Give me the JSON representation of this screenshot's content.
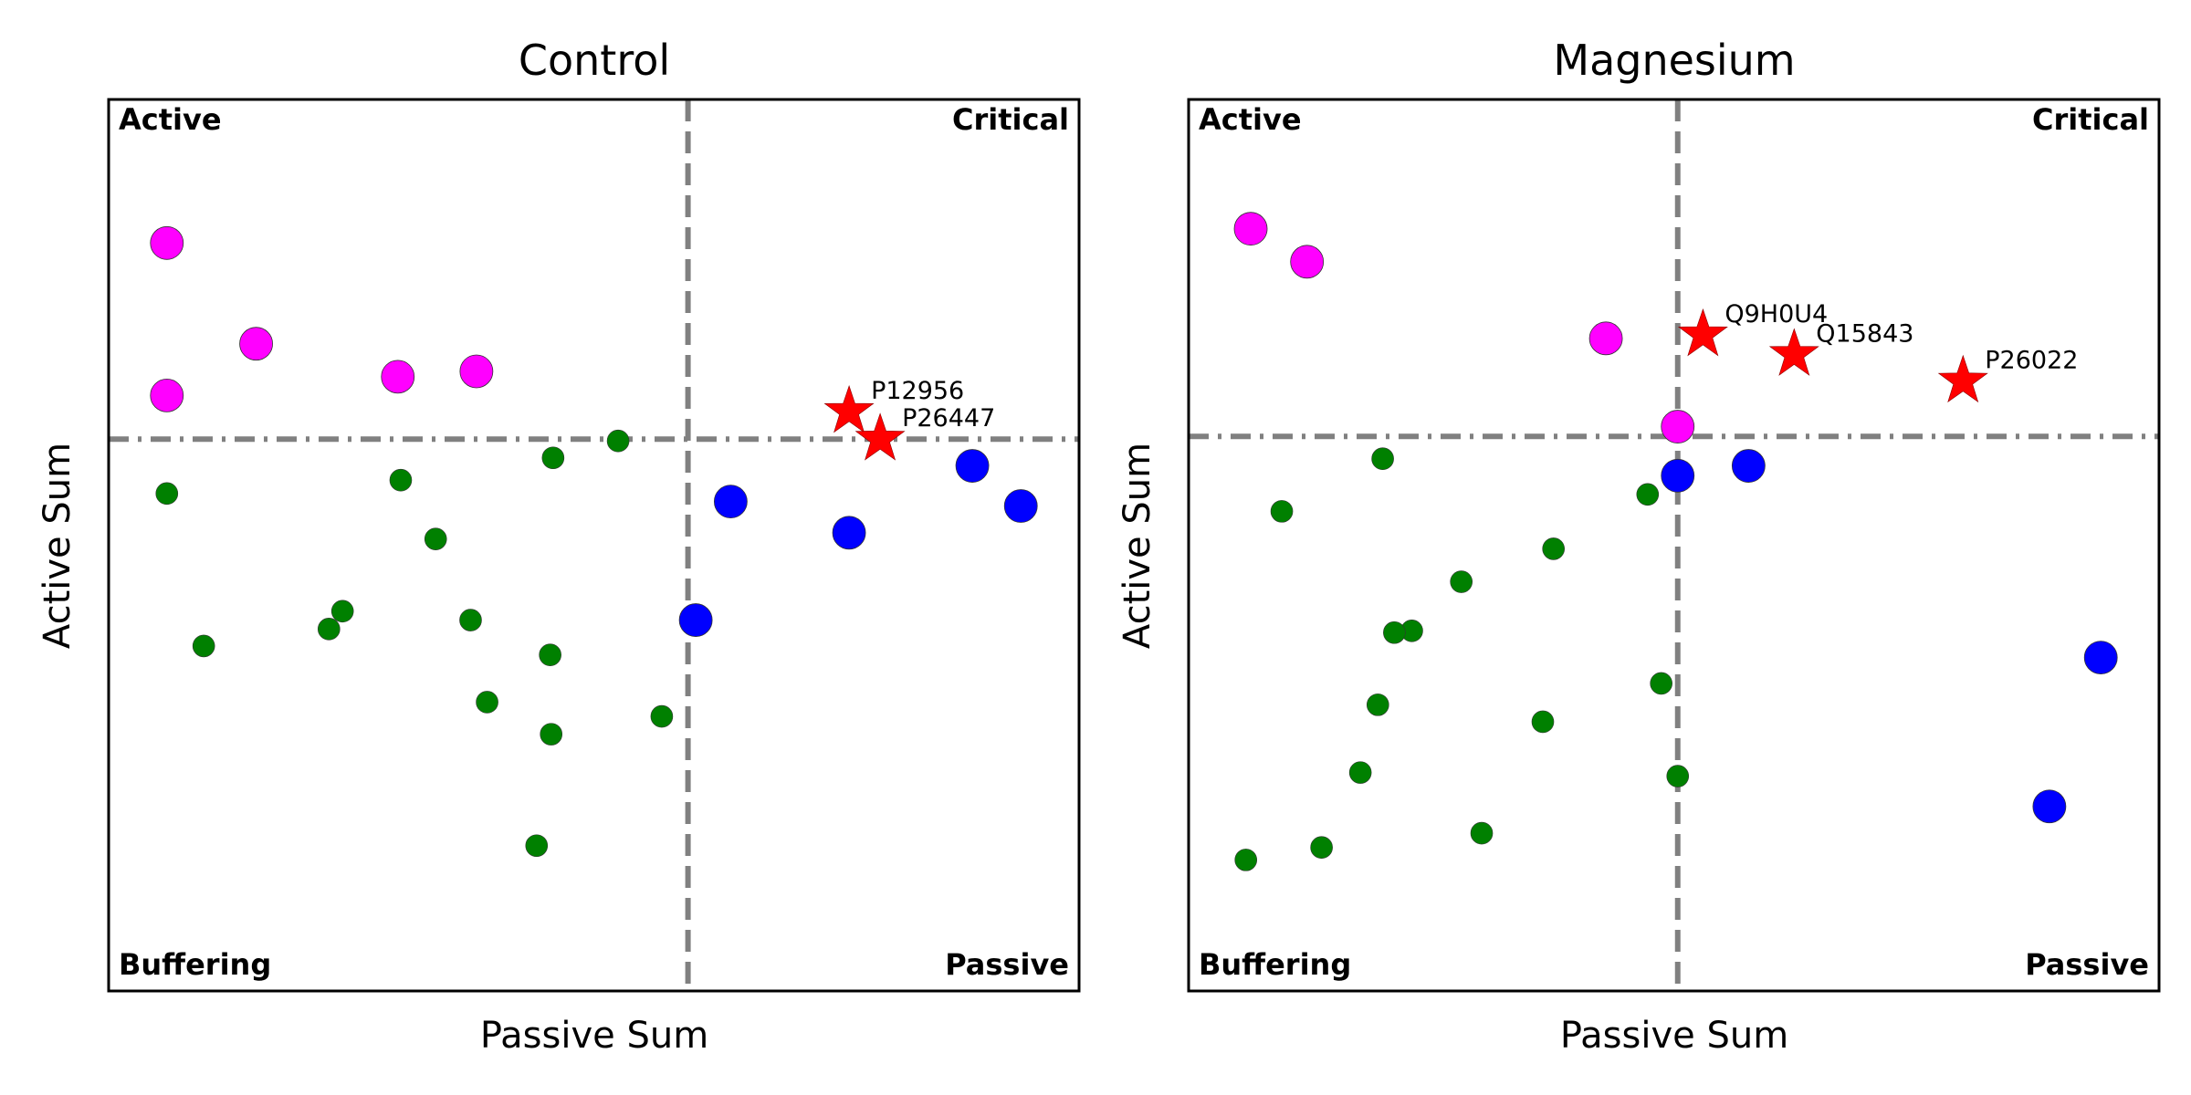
{
  "chart_data": [
    {
      "type": "scatter",
      "title": "Control",
      "xlabel": "Passive Sum",
      "ylabel": "Active Sum",
      "xlim": [
        0,
        100
      ],
      "ylim": [
        0,
        100
      ],
      "grid": false,
      "axis_ticks": false,
      "divider_x": 59.7,
      "divider_y": 61.9,
      "quadrant_labels": {
        "top_left": "Active",
        "top_right": "Critical",
        "bottom_left": "Buffering",
        "bottom_right": "Passive"
      },
      "colors": {
        "active": "#ff00ff",
        "buffering": "#008000",
        "passive": "#0000ff",
        "critical": "#ff0000",
        "divider": "#808080"
      },
      "series": [
        {
          "category": "active",
          "marker": "large-circle",
          "points": [
            {
              "x": 6.0,
              "y": 83.9
            },
            {
              "x": 6.0,
              "y": 66.8
            },
            {
              "x": 15.2,
              "y": 72.6
            },
            {
              "x": 29.8,
              "y": 68.9
            },
            {
              "x": 37.9,
              "y": 69.5
            }
          ]
        },
        {
          "category": "buffering",
          "marker": "small-circle",
          "points": [
            {
              "x": 6.0,
              "y": 55.8
            },
            {
              "x": 30.1,
              "y": 57.3
            },
            {
              "x": 45.8,
              "y": 59.8
            },
            {
              "x": 52.5,
              "y": 61.7
            },
            {
              "x": 33.7,
              "y": 50.7
            },
            {
              "x": 9.8,
              "y": 38.7
            },
            {
              "x": 22.7,
              "y": 40.6
            },
            {
              "x": 24.1,
              "y": 42.6
            },
            {
              "x": 37.3,
              "y": 41.6
            },
            {
              "x": 45.5,
              "y": 37.7
            },
            {
              "x": 39.0,
              "y": 32.4
            },
            {
              "x": 57.0,
              "y": 30.8
            },
            {
              "x": 45.6,
              "y": 28.8
            },
            {
              "x": 44.1,
              "y": 16.3
            }
          ]
        },
        {
          "category": "passive",
          "marker": "large-circle",
          "points": [
            {
              "x": 64.1,
              "y": 54.9
            },
            {
              "x": 76.3,
              "y": 51.4
            },
            {
              "x": 89.0,
              "y": 58.9
            },
            {
              "x": 94.0,
              "y": 54.4
            },
            {
              "x": 60.5,
              "y": 41.6
            }
          ]
        },
        {
          "category": "critical",
          "marker": "star",
          "points": [
            {
              "x": 76.3,
              "y": 65.0,
              "label": "P12956"
            },
            {
              "x": 79.5,
              "y": 61.9,
              "label": "P26447"
            }
          ]
        }
      ]
    },
    {
      "type": "scatter",
      "title": "Magnesium",
      "xlabel": "Passive Sum",
      "ylabel": "Active Sum",
      "xlim": [
        0,
        100
      ],
      "ylim": [
        0,
        100
      ],
      "grid": false,
      "axis_ticks": false,
      "divider_x": 50.4,
      "divider_y": 62.2,
      "quadrant_labels": {
        "top_left": "Active",
        "top_right": "Critical",
        "bottom_left": "Buffering",
        "bottom_right": "Passive"
      },
      "colors": {
        "active": "#ff00ff",
        "buffering": "#008000",
        "passive": "#0000ff",
        "critical": "#ff0000",
        "divider": "#808080"
      },
      "series": [
        {
          "category": "active",
          "marker": "large-circle",
          "points": [
            {
              "x": 6.4,
              "y": 85.5
            },
            {
              "x": 12.2,
              "y": 81.8
            },
            {
              "x": 43.0,
              "y": 73.2
            },
            {
              "x": 50.4,
              "y": 63.3
            }
          ]
        },
        {
          "category": "buffering",
          "marker": "small-circle",
          "points": [
            {
              "x": 20.0,
              "y": 59.7
            },
            {
              "x": 9.6,
              "y": 53.8
            },
            {
              "x": 47.3,
              "y": 55.7
            },
            {
              "x": 37.6,
              "y": 49.6
            },
            {
              "x": 28.1,
              "y": 45.9
            },
            {
              "x": 23.0,
              "y": 40.4
            },
            {
              "x": 21.2,
              "y": 40.2
            },
            {
              "x": 48.7,
              "y": 34.5
            },
            {
              "x": 19.5,
              "y": 32.1
            },
            {
              "x": 36.5,
              "y": 30.2
            },
            {
              "x": 17.7,
              "y": 24.5
            },
            {
              "x": 50.4,
              "y": 24.1
            },
            {
              "x": 30.2,
              "y": 17.7
            },
            {
              "x": 13.7,
              "y": 16.1
            },
            {
              "x": 5.9,
              "y": 14.7
            }
          ]
        },
        {
          "category": "passive",
          "marker": "large-circle",
          "points": [
            {
              "x": 50.4,
              "y": 57.8
            },
            {
              "x": 57.7,
              "y": 58.9
            },
            {
              "x": 94.0,
              "y": 37.4
            },
            {
              "x": 88.7,
              "y": 20.7
            }
          ]
        },
        {
          "category": "critical",
          "marker": "star",
          "points": [
            {
              "x": 53.0,
              "y": 73.6,
              "label": "Q9H0U4"
            },
            {
              "x": 62.4,
              "y": 71.4,
              "label": "Q15843"
            },
            {
              "x": 79.8,
              "y": 68.4,
              "label": "P26022"
            }
          ]
        }
      ]
    }
  ]
}
